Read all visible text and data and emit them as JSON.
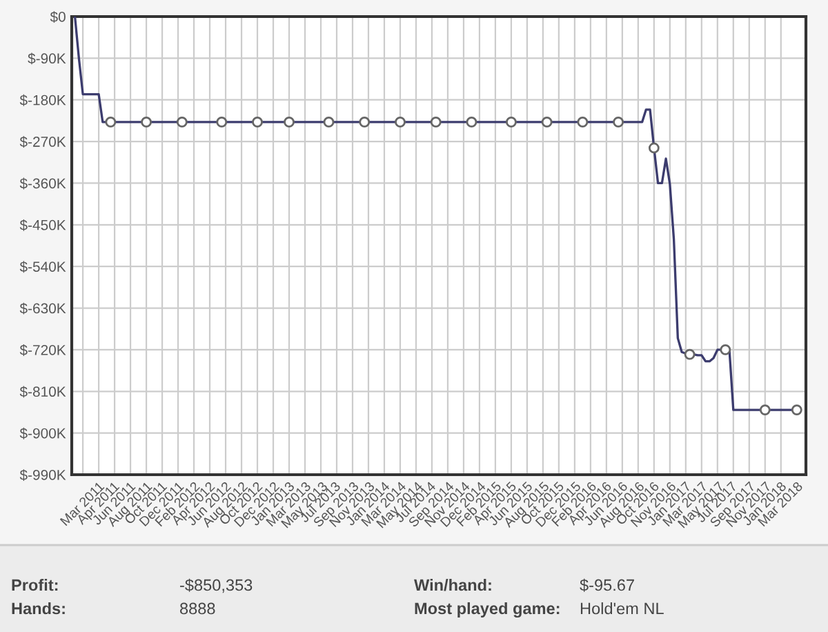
{
  "chart_data": {
    "type": "line",
    "categories": [
      null,
      null,
      "Mar 2011",
      null,
      null,
      null,
      "Apr 2011",
      null,
      null,
      null,
      "Jun 2011",
      null,
      null,
      null,
      "Aug 2011",
      null,
      null,
      null,
      "Oct 2011",
      null,
      null,
      null,
      "Dec 2011",
      null,
      null,
      null,
      "Feb 2012",
      null,
      null,
      null,
      "Apr 2012",
      null,
      null,
      null,
      "Jun 2012",
      null,
      null,
      null,
      "Aug 2012",
      null,
      null,
      null,
      "Oct 2012",
      null,
      null,
      null,
      "Dec 2012",
      null,
      null,
      null,
      "Jan 2013",
      null,
      null,
      null,
      "Mar 2013",
      null,
      null,
      null,
      "May 2013",
      null,
      null,
      null,
      "Jul 2013",
      null,
      null,
      null,
      "Sep 2013",
      null,
      null,
      null,
      "Nov 2013",
      null,
      null,
      null,
      "Jan 2014",
      null,
      null,
      null,
      "Mar 2014",
      null,
      null,
      null,
      "May 2014",
      null,
      null,
      null,
      "Jul 2014",
      null,
      null,
      null,
      "Sep 2014",
      null,
      null,
      null,
      "Nov 2014",
      null,
      null,
      null,
      "Dec 2014",
      null,
      null,
      null,
      "Feb 2015",
      null,
      null,
      null,
      "Apr 2015",
      null,
      null,
      null,
      "Jun 2015",
      null,
      null,
      null,
      "Aug 2015",
      null,
      null,
      null,
      "Oct 2015",
      null,
      null,
      null,
      "Dec 2015",
      null,
      null,
      null,
      "Feb 2016",
      null,
      null,
      null,
      "Apr 2016",
      null,
      null,
      null,
      "Jun 2016",
      null,
      null,
      null,
      "Aug 2016",
      null,
      null,
      null,
      "Oct 2016",
      null,
      null,
      null,
      "Nov 2016",
      null,
      null,
      null,
      "Jan 2017",
      null,
      null,
      null,
      "Mar 2017",
      null,
      null,
      null,
      "May 2017",
      null,
      null,
      null,
      "Jul 2017",
      null,
      null,
      null,
      "Sep 2017",
      null,
      null,
      null,
      "Nov 2017",
      null,
      null,
      null,
      "Jan 2018",
      null,
      null,
      null,
      "Mar 2018",
      null,
      null,
      null,
      null
    ],
    "ylim": [
      -990000,
      0
    ],
    "yticks": [
      {
        "value": 0,
        "label": "$0"
      },
      {
        "value": -90000,
        "label": "$-90K"
      },
      {
        "value": -180000,
        "label": "$-180K"
      },
      {
        "value": -270000,
        "label": "$-270K"
      },
      {
        "value": -360000,
        "label": "$-360K"
      },
      {
        "value": -450000,
        "label": "$-450K"
      },
      {
        "value": -540000,
        "label": "$-540K"
      },
      {
        "value": -630000,
        "label": "$-630K"
      },
      {
        "value": -720000,
        "label": "$-720K"
      },
      {
        "value": -810000,
        "label": "$-810K"
      },
      {
        "value": -900000,
        "label": "$-900K"
      },
      {
        "value": -990000,
        "label": "$-990K"
      }
    ],
    "grid": true,
    "series": [
      {
        "color": "#3c3c6e",
        "marker": "none",
        "values": [
          0,
          -90000,
          -168000,
          -168000,
          -168000,
          -168000,
          -168000,
          -228000,
          -228000,
          -228000,
          -228000,
          -228000,
          -228000,
          -228000,
          -228000,
          -228000,
          -228000,
          -228000,
          -228000,
          -228000,
          -228000,
          -228000,
          -228000,
          -228000,
          -228000,
          -228000,
          -228000,
          -228000,
          -228000,
          -228000,
          -228000,
          -228000,
          -228000,
          -228000,
          -228000,
          -228000,
          -228000,
          -228000,
          -228000,
          -228000,
          -228000,
          -228000,
          -228000,
          -228000,
          -228000,
          -228000,
          -228000,
          -228000,
          -228000,
          -228000,
          -228000,
          -228000,
          -228000,
          -228000,
          -228000,
          -228000,
          -228000,
          -228000,
          -228000,
          -228000,
          -228000,
          -228000,
          -228000,
          -228000,
          -228000,
          -228000,
          -228000,
          -228000,
          -228000,
          -228000,
          -228000,
          -228000,
          -228000,
          -228000,
          -228000,
          -228000,
          -228000,
          -228000,
          -228000,
          -228000,
          -228000,
          -228000,
          -228000,
          -228000,
          -228000,
          -228000,
          -228000,
          -228000,
          -228000,
          -228000,
          -228000,
          -228000,
          -228000,
          -228000,
          -228000,
          -228000,
          -228000,
          -228000,
          -228000,
          -228000,
          -228000,
          -228000,
          -228000,
          -228000,
          -228000,
          -228000,
          -228000,
          -228000,
          -228000,
          -228000,
          -228000,
          -228000,
          -228000,
          -228000,
          -228000,
          -228000,
          -228000,
          -228000,
          -228000,
          -228000,
          -228000,
          -228000,
          -228000,
          -228000,
          -228000,
          -228000,
          -228000,
          -228000,
          -228000,
          -228000,
          -228000,
          -228000,
          -228000,
          -228000,
          -228000,
          -228000,
          -228000,
          -228000,
          -228000,
          -228000,
          -228000,
          -228000,
          -228000,
          -228000,
          -201000,
          -201000,
          -284000,
          -360000,
          -360000,
          -307000,
          -362000,
          -481000,
          -695000,
          -725000,
          -728000,
          -730000,
          -730000,
          -732000,
          -732000,
          -745000,
          -745000,
          -738000,
          -720000,
          -720000,
          -720000,
          -720000,
          -850000,
          -850000,
          -850000,
          -850000,
          -850000,
          -850000,
          -850000,
          -850000,
          -850000,
          -850000,
          -850000,
          -850000,
          -850000,
          -850000,
          -850000,
          -850000,
          -850000
        ]
      },
      {
        "type": "scatter",
        "color": "#666666",
        "marker": "circle",
        "values": [
          null,
          null,
          null,
          null,
          null,
          null,
          null,
          null,
          null,
          -228000,
          null,
          null,
          null,
          null,
          null,
          null,
          null,
          null,
          -228000,
          null,
          null,
          null,
          null,
          null,
          null,
          null,
          null,
          -228000,
          null,
          null,
          null,
          null,
          null,
          null,
          null,
          null,
          null,
          -228000,
          null,
          null,
          null,
          null,
          null,
          null,
          null,
          null,
          -228000,
          null,
          null,
          null,
          null,
          null,
          null,
          null,
          -228000,
          null,
          null,
          null,
          null,
          null,
          null,
          null,
          null,
          null,
          -228000,
          null,
          null,
          null,
          null,
          null,
          null,
          null,
          null,
          -228000,
          null,
          null,
          null,
          null,
          null,
          null,
          null,
          null,
          -228000,
          null,
          null,
          null,
          null,
          null,
          null,
          null,
          null,
          -228000,
          null,
          null,
          null,
          null,
          null,
          null,
          null,
          null,
          -228000,
          null,
          null,
          null,
          null,
          null,
          null,
          null,
          null,
          null,
          -228000,
          null,
          null,
          null,
          null,
          null,
          null,
          null,
          null,
          -228000,
          null,
          null,
          null,
          null,
          null,
          null,
          null,
          null,
          -228000,
          null,
          null,
          null,
          null,
          null,
          null,
          null,
          null,
          -228000,
          null,
          null,
          null,
          null,
          null,
          null,
          null,
          null,
          -284000,
          null,
          null,
          null,
          null,
          null,
          null,
          null,
          null,
          -730000,
          null,
          null,
          null,
          null,
          null,
          null,
          null,
          null,
          -720000,
          null,
          null,
          null,
          null,
          null,
          null,
          null,
          null,
          null,
          -850000,
          null,
          null,
          null,
          null,
          null,
          null,
          null,
          -850000
        ]
      }
    ],
    "annotations": [
      "Profit:",
      "-$850,353",
      "Win/hand:",
      "$-95.67",
      "Hands:",
      "8888",
      "Most played game:",
      "Hold'em NL"
    ]
  }
}
